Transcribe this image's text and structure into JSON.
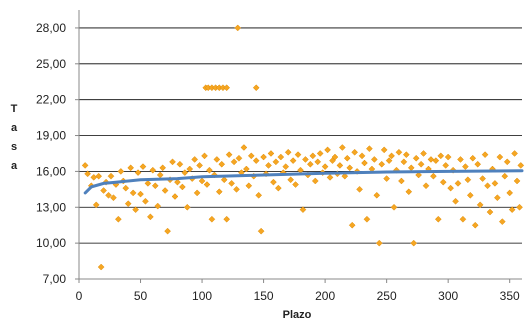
{
  "chart_data": {
    "type": "scatter",
    "xlabel": "Plazo",
    "ylabel": "Tasa",
    "xlim": [
      0,
      360
    ],
    "ylim": [
      7,
      29.5
    ],
    "xticks": [
      0,
      50,
      100,
      150,
      200,
      250,
      300,
      350
    ],
    "yticks": [
      7,
      10,
      13,
      16,
      19,
      22,
      25,
      28
    ],
    "xtick_labels": [
      "0",
      "50",
      "100",
      "150",
      "200",
      "250",
      "300",
      "350"
    ],
    "ytick_labels": [
      "7,00",
      "10,00",
      "13,00",
      "16,00",
      "19,00",
      "22,00",
      "25,00",
      "28,00"
    ],
    "grid": "horizontal",
    "legend": "none",
    "colors": {
      "points": "#F5A623",
      "point_edge": "#E08A00",
      "trend": "#4F81BD",
      "grid": "#000000",
      "axis": "#888888"
    },
    "series": [
      {
        "kind": "scatter",
        "marker": "diamond",
        "points": [
          [
            129,
            28.0
          ],
          [
            103,
            23.0
          ],
          [
            105,
            23.0
          ],
          [
            108,
            23.0
          ],
          [
            111,
            23.0
          ],
          [
            114,
            23.0
          ],
          [
            117,
            23.0
          ],
          [
            120,
            23.0
          ],
          [
            144,
            23.0
          ],
          [
            5,
            16.5
          ],
          [
            7,
            15.8
          ],
          [
            10,
            14.8
          ],
          [
            12,
            15.5
          ],
          [
            14,
            13.2
          ],
          [
            16,
            15.6
          ],
          [
            18,
            8.0
          ],
          [
            20,
            14.4
          ],
          [
            22,
            15.1
          ],
          [
            24,
            14.0
          ],
          [
            26,
            15.6
          ],
          [
            28,
            13.8
          ],
          [
            30,
            14.9
          ],
          [
            32,
            12.0
          ],
          [
            34,
            16.0
          ],
          [
            36,
            15.2
          ],
          [
            38,
            14.6
          ],
          [
            40,
            13.3
          ],
          [
            42,
            16.3
          ],
          [
            44,
            14.2
          ],
          [
            46,
            12.8
          ],
          [
            48,
            15.9
          ],
          [
            50,
            14.1
          ],
          [
            52,
            16.4
          ],
          [
            54,
            13.5
          ],
          [
            56,
            15.0
          ],
          [
            58,
            12.2
          ],
          [
            60,
            16.1
          ],
          [
            62,
            14.8
          ],
          [
            64,
            13.1
          ],
          [
            66,
            15.7
          ],
          [
            68,
            16.3
          ],
          [
            70,
            14.4
          ],
          [
            72,
            11.0
          ],
          [
            74,
            15.3
          ],
          [
            76,
            16.8
          ],
          [
            78,
            13.9
          ],
          [
            80,
            15.1
          ],
          [
            82,
            16.6
          ],
          [
            84,
            14.7
          ],
          [
            86,
            15.9
          ],
          [
            88,
            13.0
          ],
          [
            90,
            16.2
          ],
          [
            92,
            15.4
          ],
          [
            94,
            17.0
          ],
          [
            96,
            14.2
          ],
          [
            98,
            16.5
          ],
          [
            100,
            15.2
          ],
          [
            102,
            17.3
          ],
          [
            104,
            14.9
          ],
          [
            106,
            16.1
          ],
          [
            108,
            12.0
          ],
          [
            110,
            15.7
          ],
          [
            112,
            17.0
          ],
          [
            114,
            14.3
          ],
          [
            116,
            16.6
          ],
          [
            118,
            15.3
          ],
          [
            120,
            12.0
          ],
          [
            122,
            17.4
          ],
          [
            124,
            15.0
          ],
          [
            126,
            16.8
          ],
          [
            128,
            14.5
          ],
          [
            130,
            17.1
          ],
          [
            132,
            15.9
          ],
          [
            134,
            18.0
          ],
          [
            136,
            16.2
          ],
          [
            138,
            14.8
          ],
          [
            140,
            17.3
          ],
          [
            142,
            15.6
          ],
          [
            144,
            16.9
          ],
          [
            146,
            14.0
          ],
          [
            148,
            11.0
          ],
          [
            150,
            17.2
          ],
          [
            152,
            15.8
          ],
          [
            154,
            16.5
          ],
          [
            156,
            17.5
          ],
          [
            158,
            15.1
          ],
          [
            160,
            16.8
          ],
          [
            162,
            14.6
          ],
          [
            164,
            17.2
          ],
          [
            166,
            15.9
          ],
          [
            168,
            16.4
          ],
          [
            170,
            17.6
          ],
          [
            172,
            15.3
          ],
          [
            174,
            16.9
          ],
          [
            176,
            14.9
          ],
          [
            178,
            17.4
          ],
          [
            180,
            16.1
          ],
          [
            182,
            12.8
          ],
          [
            184,
            17.0
          ],
          [
            186,
            15.7
          ],
          [
            188,
            16.6
          ],
          [
            190,
            17.3
          ],
          [
            192,
            15.2
          ],
          [
            194,
            16.8
          ],
          [
            196,
            17.5
          ],
          [
            198,
            15.9
          ],
          [
            200,
            16.4
          ],
          [
            202,
            17.8
          ],
          [
            204,
            15.5
          ],
          [
            206,
            16.9
          ],
          [
            208,
            17.2
          ],
          [
            210,
            15.8
          ],
          [
            212,
            16.5
          ],
          [
            214,
            18.0
          ],
          [
            216,
            15.6
          ],
          [
            218,
            17.1
          ],
          [
            220,
            16.3
          ],
          [
            222,
            11.5
          ],
          [
            224,
            17.6
          ],
          [
            226,
            16.0
          ],
          [
            228,
            14.5
          ],
          [
            230,
            17.3
          ],
          [
            232,
            16.7
          ],
          [
            234,
            12.0
          ],
          [
            236,
            17.9
          ],
          [
            238,
            16.2
          ],
          [
            240,
            17.0
          ],
          [
            242,
            14.0
          ],
          [
            244,
            10.0
          ],
          [
            246,
            16.6
          ],
          [
            248,
            17.8
          ],
          [
            250,
            15.4
          ],
          [
            252,
            16.9
          ],
          [
            254,
            17.3
          ],
          [
            256,
            13.0
          ],
          [
            258,
            16.1
          ],
          [
            260,
            17.6
          ],
          [
            262,
            15.2
          ],
          [
            264,
            16.8
          ],
          [
            266,
            17.4
          ],
          [
            268,
            14.3
          ],
          [
            270,
            16.3
          ],
          [
            272,
            10.0
          ],
          [
            274,
            17.1
          ],
          [
            276,
            15.7
          ],
          [
            278,
            16.6
          ],
          [
            280,
            17.5
          ],
          [
            282,
            14.8
          ],
          [
            284,
            16.2
          ],
          [
            286,
            17.0
          ],
          [
            288,
            15.6
          ],
          [
            290,
            16.9
          ],
          [
            292,
            12.0
          ],
          [
            294,
            17.3
          ],
          [
            296,
            15.1
          ],
          [
            298,
            16.5
          ],
          [
            300,
            17.2
          ],
          [
            302,
            14.6
          ],
          [
            304,
            16.1
          ],
          [
            306,
            13.5
          ],
          [
            308,
            15.0
          ],
          [
            310,
            17.0
          ],
          [
            312,
            12.0
          ],
          [
            314,
            16.4
          ],
          [
            316,
            15.3
          ],
          [
            318,
            14.0
          ],
          [
            320,
            17.1
          ],
          [
            322,
            11.5
          ],
          [
            324,
            16.6
          ],
          [
            326,
            13.2
          ],
          [
            328,
            15.4
          ],
          [
            330,
            17.4
          ],
          [
            332,
            14.8
          ],
          [
            334,
            12.6
          ],
          [
            336,
            16.2
          ],
          [
            338,
            15.0
          ],
          [
            340,
            13.8
          ],
          [
            342,
            17.2
          ],
          [
            344,
            11.8
          ],
          [
            346,
            15.6
          ],
          [
            348,
            16.8
          ],
          [
            350,
            14.2
          ],
          [
            352,
            12.8
          ],
          [
            354,
            17.5
          ],
          [
            356,
            15.2
          ],
          [
            358,
            13.0
          ],
          [
            359,
            16.5
          ]
        ]
      },
      {
        "kind": "trend",
        "points": [
          [
            5,
            14.2
          ],
          [
            10,
            14.7
          ],
          [
            20,
            15.0
          ],
          [
            30,
            15.1
          ],
          [
            50,
            15.3
          ],
          [
            80,
            15.4
          ],
          [
            100,
            15.55
          ],
          [
            150,
            15.7
          ],
          [
            200,
            15.85
          ],
          [
            250,
            15.95
          ],
          [
            300,
            16.0
          ],
          [
            360,
            16.05
          ]
        ]
      }
    ]
  }
}
